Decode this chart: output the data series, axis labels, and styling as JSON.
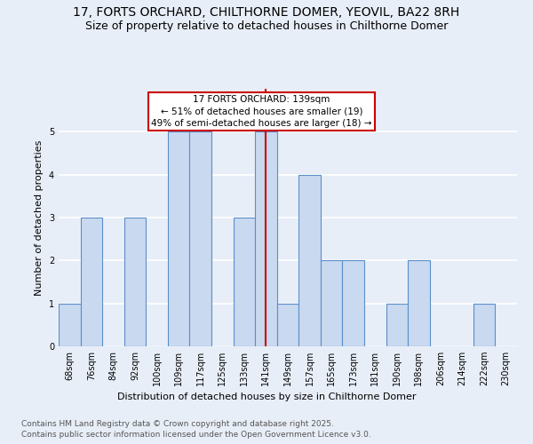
{
  "title": "17, FORTS ORCHARD, CHILTHORNE DOMER, YEOVIL, BA22 8RH",
  "subtitle": "Size of property relative to detached houses in Chilthorne Domer",
  "xlabel": "Distribution of detached houses by size in Chilthorne Domer",
  "ylabel": "Number of detached properties",
  "categories": [
    "68sqm",
    "76sqm",
    "84sqm",
    "92sqm",
    "100sqm",
    "109sqm",
    "117sqm",
    "125sqm",
    "133sqm",
    "141sqm",
    "149sqm",
    "157sqm",
    "165sqm",
    "173sqm",
    "181sqm",
    "190sqm",
    "198sqm",
    "206sqm",
    "214sqm",
    "222sqm",
    "230sqm"
  ],
  "values": [
    1,
    3,
    0,
    3,
    0,
    5,
    5,
    0,
    3,
    5,
    1,
    4,
    2,
    2,
    0,
    1,
    2,
    0,
    0,
    1,
    0
  ],
  "bar_color": "#c9d9f0",
  "bar_edge_color": "#5b8fc9",
  "reference_line_index": 9,
  "annotation_line1": "17 FORTS ORCHARD: 139sqm",
  "annotation_line2": "← 51% of detached houses are smaller (19)",
  "annotation_line3": "49% of semi-detached houses are larger (18) →",
  "annotation_box_color": "#ffffff",
  "annotation_box_edge": "#cc0000",
  "vline_color": "#cc0000",
  "ylim": [
    0,
    6
  ],
  "yticks": [
    0,
    1,
    2,
    3,
    4,
    5,
    6
  ],
  "background_color": "#e8eef8",
  "grid_color": "#ffffff",
  "footer_line1": "Contains HM Land Registry data © Crown copyright and database right 2025.",
  "footer_line2": "Contains public sector information licensed under the Open Government Licence v3.0.",
  "title_fontsize": 10,
  "subtitle_fontsize": 9,
  "axis_label_fontsize": 8,
  "tick_fontsize": 7,
  "annotation_fontsize": 7.5,
  "footer_fontsize": 6.5
}
